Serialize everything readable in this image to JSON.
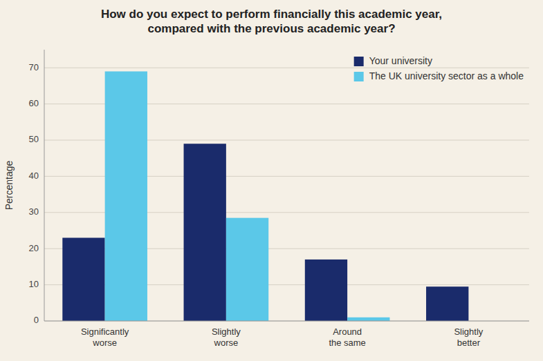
{
  "chart_data": {
    "type": "bar",
    "title": "How do you expect to perform financially this academic year,\ncompared with the previous academic year?",
    "categories": [
      "Significantly\nworse",
      "Slightly\nworse",
      "Around\nthe same",
      "Slightly\nbetter"
    ],
    "series": [
      {
        "name": "Your university",
        "color": "#1a2b6b",
        "values": [
          23,
          49,
          17,
          9.5
        ]
      },
      {
        "name": "The UK university sector as a whole",
        "color": "#5bc8e8",
        "values": [
          69,
          28.5,
          1,
          0
        ]
      }
    ],
    "ylabel": "Percentage",
    "ylim": [
      0,
      75
    ],
    "yticks": [
      0,
      10,
      20,
      30,
      40,
      50,
      60,
      70
    ],
    "grid": true,
    "legend": "top-right"
  }
}
